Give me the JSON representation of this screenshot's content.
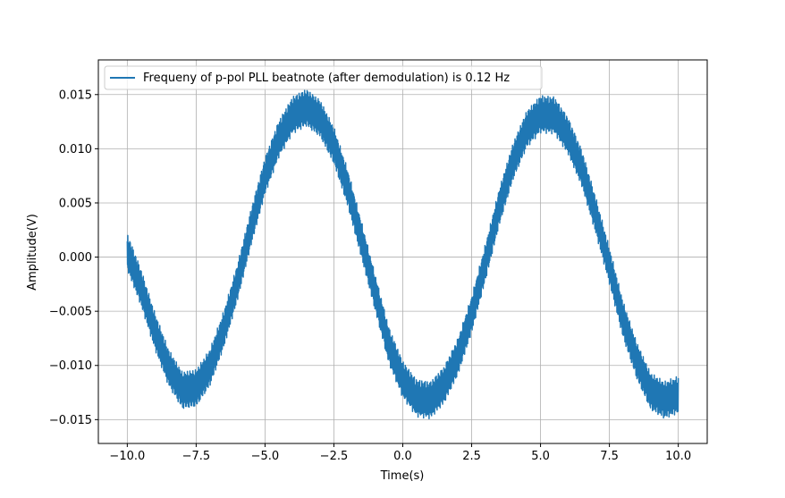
{
  "chart_data": {
    "type": "line",
    "title": "",
    "xlabel": "Time(s)",
    "ylabel": "Amplitude(V)",
    "xlim": [
      -11.05,
      11.05
    ],
    "ylim": [
      -0.0172,
      0.0182
    ],
    "xticks": [
      -10.0,
      -7.5,
      -5.0,
      -2.5,
      0.0,
      2.5,
      5.0,
      7.5,
      10.0
    ],
    "xtick_labels": [
      "−10.0",
      "−7.5",
      "−5.0",
      "−2.5",
      "0.0",
      "2.5",
      "5.0",
      "7.5",
      "10.0"
    ],
    "yticks": [
      -0.015,
      -0.01,
      -0.005,
      0.0,
      0.005,
      0.01,
      0.015
    ],
    "ytick_labels": [
      "−0.015",
      "−0.010",
      "−0.005",
      "0.000",
      "0.005",
      "0.010",
      "0.015"
    ],
    "grid": true,
    "legend_position": "top-left",
    "series": [
      {
        "name": "Frequeny of p-pol PLL beatnote (after demodulation) is 0.12 Hz",
        "color": "#1f77b4",
        "band_width": 0.0035,
        "x": [
          -10.0,
          -9.5,
          -9.0,
          -8.5,
          -8.0,
          -7.5,
          -7.0,
          -6.5,
          -6.0,
          -5.5,
          -5.0,
          -4.5,
          -4.0,
          -3.5,
          -3.0,
          -2.5,
          -2.0,
          -1.5,
          -1.0,
          -0.5,
          0.0,
          0.5,
          1.0,
          1.5,
          2.0,
          2.5,
          3.0,
          3.5,
          4.0,
          4.5,
          5.0,
          5.5,
          6.0,
          6.5,
          7.0,
          7.5,
          8.0,
          8.5,
          9.0,
          9.5,
          10.0
        ],
        "y": [
          0.0005,
          -0.0028,
          -0.0068,
          -0.0102,
          -0.0123,
          -0.0121,
          -0.0102,
          -0.0067,
          -0.0023,
          0.0028,
          0.0075,
          0.0109,
          0.0131,
          0.0138,
          0.0128,
          0.0103,
          0.0064,
          0.0016,
          -0.0033,
          -0.0082,
          -0.0113,
          -0.013,
          -0.0132,
          -0.0118,
          -0.0092,
          -0.0053,
          -0.0005,
          0.0046,
          0.0088,
          0.0118,
          0.0132,
          0.0131,
          0.0112,
          0.0082,
          0.0039,
          -0.0008,
          -0.0058,
          -0.0096,
          -0.0124,
          -0.0132,
          -0.0127
        ]
      }
    ]
  }
}
